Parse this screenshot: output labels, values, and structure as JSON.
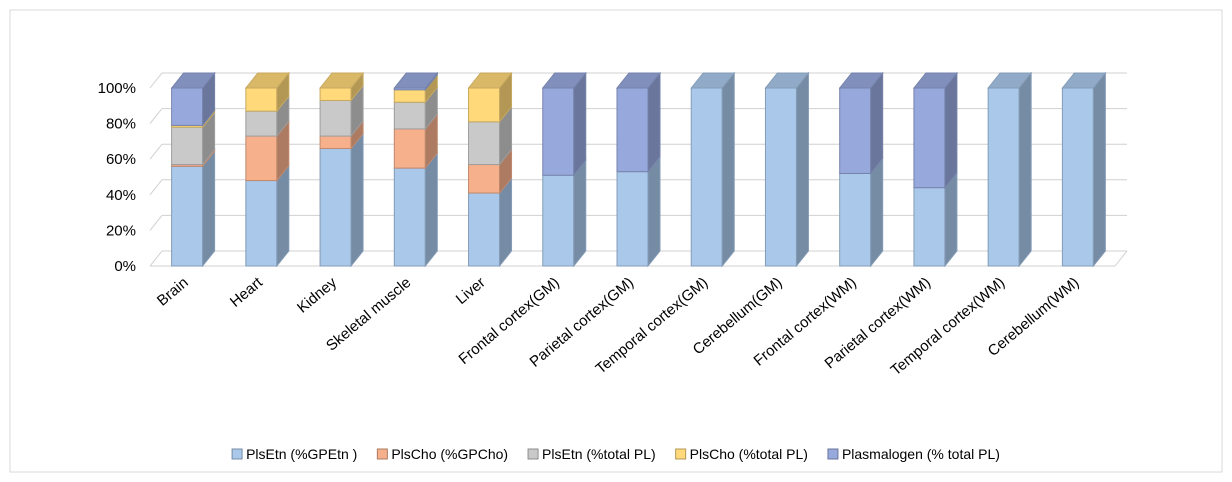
{
  "chart_data": {
    "type": "bar",
    "stacked": true,
    "perspective": "3d",
    "title": "",
    "xlabel": "",
    "ylabel": "",
    "ylim": [
      0,
      100
    ],
    "yticks": [
      "0%",
      "20%",
      "40%",
      "60%",
      "80%",
      "100%"
    ],
    "grid": true,
    "legend_position": "bottom",
    "categories": [
      "Brain",
      "Heart",
      "Kidney",
      "Skeletal muscle",
      "Liver",
      "Frontal cortex(GM)",
      "Parietal cortex(GM)",
      "Temporal cortex(GM)",
      "Cerebellum(GM)",
      "Frontal cortex(WM)",
      "Parietal cortex(WM)",
      "Temporal cortex(WM)",
      "Cerebellum(WM)"
    ],
    "series": [
      {
        "name": "PlsEtn (%GPEtn )",
        "color": "#a9c8ea",
        "values": [
          56,
          48,
          66,
          55,
          41,
          51,
          53,
          100,
          100,
          52,
          44,
          100,
          100
        ]
      },
      {
        "name": "PlsCho (%GPCho)",
        "color": "#f6b08c",
        "values": [
          1,
          25,
          7,
          22,
          16,
          0,
          0,
          0,
          0,
          0,
          0,
          0,
          0
        ]
      },
      {
        "name": "PlsEtn (%total PL)",
        "color": "#c9c9c9",
        "values": [
          21,
          14,
          20,
          15,
          24,
          0,
          0,
          0,
          0,
          0,
          0,
          0,
          0
        ]
      },
      {
        "name": "PlsCho (%total PL)",
        "color": "#ffd97a",
        "values": [
          1,
          13,
          7,
          7,
          19,
          0,
          0,
          0,
          0,
          0,
          0,
          0,
          0
        ]
      },
      {
        "name": "Plasmalogen (% total PL)",
        "color": "#97a8dd",
        "values": [
          21,
          0,
          0,
          1,
          0,
          49,
          47,
          0,
          0,
          48,
          56,
          0,
          0
        ]
      }
    ]
  }
}
